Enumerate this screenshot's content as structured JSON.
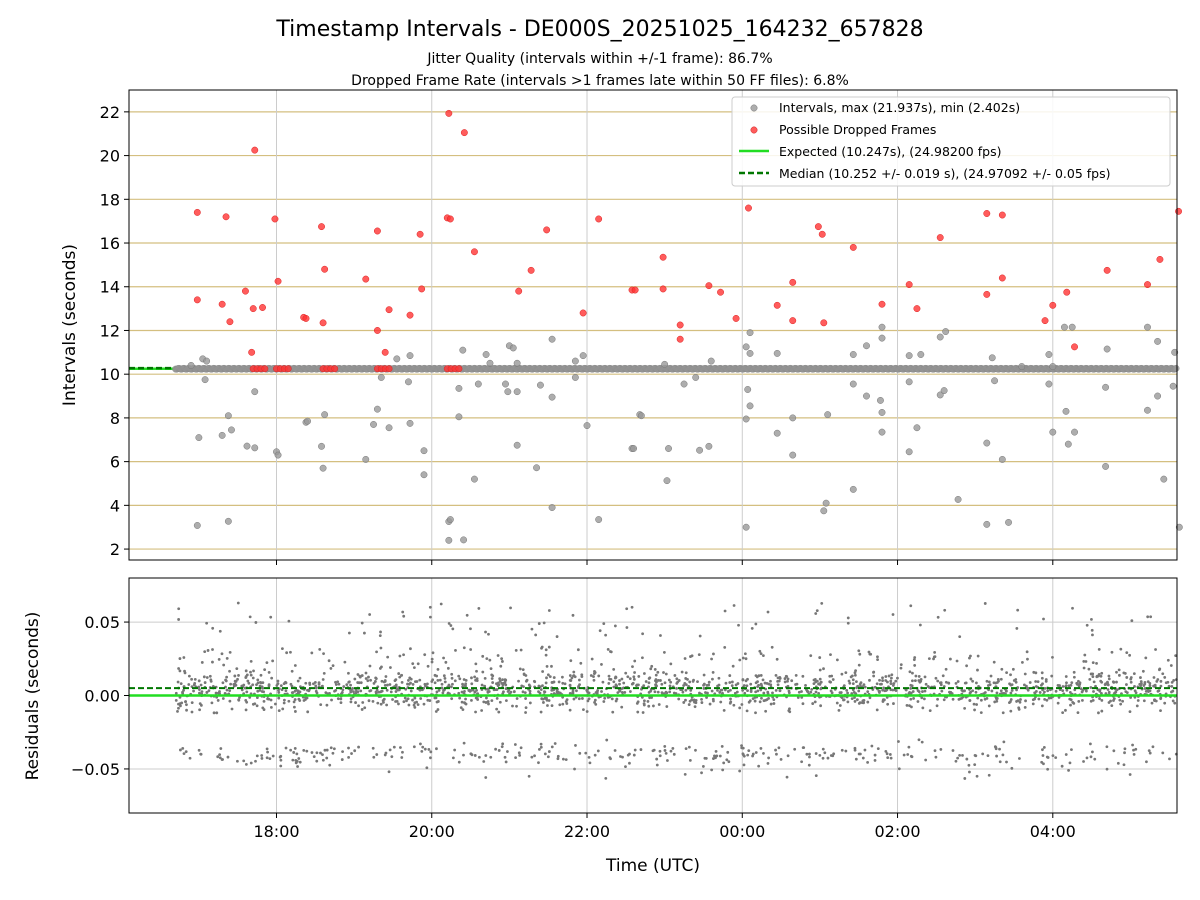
{
  "chart_data": [
    {
      "id": "top",
      "type": "scatter",
      "title": "Timestamp Intervals - DE000S_20251025_164232_657828",
      "subtitle_lines": [
        "Jitter Quality (intervals within +/-1 frame): 86.7%",
        "Dropped Frame Rate (intervals >1 frames late within 50 FF files): 6.8%"
      ],
      "ylabel": "Intervals (seconds)",
      "ylim": [
        1.5,
        23.0
      ],
      "xlim_hours": [
        16.1,
        29.6
      ],
      "yticks": [
        2,
        4,
        6,
        8,
        10,
        12,
        14,
        16,
        18,
        20,
        22
      ],
      "colors": {
        "intervals": "#999999",
        "dropped": "#ff3333",
        "expected": "#22dd22",
        "median": "#007700",
        "hgrid": "#d4bf80",
        "vgrid": "#cccccc"
      },
      "legend": [
        "Intervals, max (21.937s), min (2.402s)",
        "Possible Dropped Frames",
        "Expected (10.247s), (24.98200 fps)",
        "Median (10.252 +/- 0.019 s), (24.97092 +/- 0.05 fps)"
      ],
      "expected_value": 10.247,
      "median_value": 10.252,
      "series": [
        {
          "name": "Intervals",
          "points": [
            [
              16.98,
              3.08
            ],
            [
              17.38,
              3.27
            ],
            [
              20.22,
              3.26
            ],
            [
              20.24,
              3.35
            ],
            [
              20.22,
              2.4
            ],
            [
              20.41,
              2.42
            ],
            [
              22.15,
              3.35
            ],
            [
              23.03,
              5.13
            ],
            [
              22.58,
              6.6
            ],
            [
              22.6,
              6.6
            ],
            [
              23.05,
              6.6
            ],
            [
              24.05,
              3.0
            ],
            [
              25.05,
              3.75
            ],
            [
              25.08,
              4.1
            ],
            [
              25.43,
              4.73
            ],
            [
              26.78,
              4.27
            ],
            [
              27.15,
              3.13
            ],
            [
              27.43,
              3.22
            ],
            [
              29.63,
              3.0
            ],
            [
              29.43,
              5.2
            ],
            [
              28.68,
              5.78
            ],
            [
              20.55,
              5.2
            ],
            [
              21.35,
              5.72
            ],
            [
              21.55,
              3.9
            ],
            [
              18.6,
              5.7
            ],
            [
              19.15,
              6.1
            ],
            [
              18.0,
              6.45
            ],
            [
              18.02,
              6.3
            ],
            [
              17.72,
              6.63
            ],
            [
              17.62,
              6.71
            ],
            [
              17.0,
              7.1
            ],
            [
              17.3,
              7.2
            ],
            [
              18.38,
              7.8
            ],
            [
              18.4,
              7.85
            ],
            [
              18.58,
              6.7
            ],
            [
              19.25,
              7.7
            ],
            [
              19.45,
              7.55
            ],
            [
              19.72,
              7.75
            ],
            [
              19.9,
              6.5
            ],
            [
              19.9,
              5.4
            ],
            [
              21.1,
              6.75
            ],
            [
              23.45,
              6.52
            ],
            [
              23.57,
              6.7
            ],
            [
              24.05,
              7.95
            ],
            [
              24.1,
              8.55
            ],
            [
              24.07,
              9.3
            ],
            [
              24.45,
              7.3
            ],
            [
              24.65,
              6.3
            ],
            [
              24.65,
              8.0
            ],
            [
              25.1,
              8.15
            ],
            [
              25.43,
              9.55
            ],
            [
              25.6,
              9.0
            ],
            [
              25.78,
              8.8
            ],
            [
              25.8,
              8.25
            ],
            [
              25.8,
              7.35
            ],
            [
              26.15,
              6.45
            ],
            [
              26.25,
              7.55
            ],
            [
              26.55,
              9.05
            ],
            [
              26.6,
              9.25
            ],
            [
              27.15,
              6.85
            ],
            [
              27.25,
              9.7
            ],
            [
              27.35,
              6.1
            ],
            [
              27.95,
              9.55
            ],
            [
              28.0,
              7.35
            ],
            [
              28.17,
              8.3
            ],
            [
              28.2,
              6.8
            ],
            [
              28.28,
              7.35
            ],
            [
              28.68,
              9.4
            ],
            [
              29.22,
              8.35
            ],
            [
              29.35,
              9.0
            ],
            [
              29.55,
              9.45
            ],
            [
              17.38,
              8.1
            ],
            [
              17.42,
              7.45
            ],
            [
              17.72,
              9.2
            ],
            [
              18.62,
              8.15
            ],
            [
              19.3,
              8.4
            ],
            [
              19.35,
              9.85
            ],
            [
              19.7,
              9.65
            ],
            [
              20.35,
              8.05
            ],
            [
              20.35,
              9.35
            ],
            [
              20.6,
              9.55
            ],
            [
              20.95,
              9.55
            ],
            [
              20.98,
              9.2
            ],
            [
              21.1,
              9.2
            ],
            [
              21.4,
              9.5
            ],
            [
              21.55,
              8.95
            ],
            [
              21.85,
              9.85
            ],
            [
              22.0,
              7.65
            ],
            [
              22.68,
              8.15
            ],
            [
              22.7,
              8.1
            ],
            [
              23.25,
              9.55
            ],
            [
              23.4,
              9.85
            ],
            [
              23.6,
              10.6
            ],
            [
              24.1,
              10.95
            ],
            [
              24.05,
              11.25
            ],
            [
              24.1,
              11.9
            ],
            [
              24.45,
              10.95
            ],
            [
              25.43,
              10.9
            ],
            [
              25.6,
              11.3
            ],
            [
              25.8,
              11.65
            ],
            [
              25.8,
              12.15
            ],
            [
              26.15,
              10.85
            ],
            [
              26.15,
              9.65
            ],
            [
              26.3,
              10.9
            ],
            [
              26.55,
              11.7
            ],
            [
              26.62,
              11.95
            ],
            [
              27.22,
              10.75
            ],
            [
              27.95,
              10.9
            ],
            [
              28.15,
              12.15
            ],
            [
              28.25,
              12.15
            ],
            [
              28.7,
              11.15
            ],
            [
              29.22,
              12.15
            ],
            [
              29.35,
              11.5
            ],
            [
              29.57,
              11.0
            ],
            [
              21.0,
              11.3
            ],
            [
              21.05,
              11.2
            ],
            [
              21.1,
              10.5
            ],
            [
              21.55,
              11.6
            ],
            [
              21.85,
              10.6
            ],
            [
              21.95,
              10.85
            ],
            [
              20.4,
              11.1
            ],
            [
              20.7,
              10.9
            ],
            [
              19.72,
              10.85
            ],
            [
              19.55,
              10.7
            ],
            [
              17.05,
              10.7
            ],
            [
              17.08,
              9.75
            ],
            [
              17.1,
              10.6
            ],
            [
              16.9,
              10.4
            ],
            [
              23.0,
              10.45
            ],
            [
              20.75,
              10.5
            ],
            [
              27.6,
              10.35
            ],
            [
              28.0,
              10.35
            ]
          ]
        },
        {
          "name": "Possible Dropped Frames",
          "points": [
            [
              16.98,
              17.4
            ],
            [
              16.98,
              13.4
            ],
            [
              17.3,
              13.2
            ],
            [
              17.35,
              17.2
            ],
            [
              17.4,
              12.4
            ],
            [
              17.6,
              13.8
            ],
            [
              17.68,
              11.0
            ],
            [
              17.7,
              13.0
            ],
            [
              17.72,
              20.25
            ],
            [
              17.82,
              13.05
            ],
            [
              17.98,
              17.1
            ],
            [
              18.02,
              14.25
            ],
            [
              18.35,
              12.6
            ],
            [
              18.38,
              12.55
            ],
            [
              18.58,
              16.75
            ],
            [
              18.62,
              14.8
            ],
            [
              18.6,
              12.35
            ],
            [
              19.15,
              14.35
            ],
            [
              19.3,
              16.55
            ],
            [
              19.3,
              12.0
            ],
            [
              19.4,
              11.0
            ],
            [
              19.45,
              12.95
            ],
            [
              19.72,
              12.7
            ],
            [
              19.85,
              16.4
            ],
            [
              19.87,
              13.9
            ],
            [
              20.22,
              21.93
            ],
            [
              20.2,
              17.15
            ],
            [
              20.24,
              17.1
            ],
            [
              20.42,
              21.05
            ],
            [
              20.55,
              15.6
            ],
            [
              21.12,
              13.8
            ],
            [
              21.28,
              14.75
            ],
            [
              21.48,
              16.6
            ],
            [
              21.95,
              12.8
            ],
            [
              22.15,
              17.1
            ],
            [
              22.58,
              13.85
            ],
            [
              22.62,
              13.85
            ],
            [
              22.98,
              15.35
            ],
            [
              22.98,
              13.9
            ],
            [
              23.2,
              12.25
            ],
            [
              23.2,
              11.6
            ],
            [
              23.57,
              14.05
            ],
            [
              23.72,
              13.75
            ],
            [
              23.92,
              12.55
            ],
            [
              24.08,
              17.6
            ],
            [
              24.45,
              13.15
            ],
            [
              24.65,
              14.2
            ],
            [
              24.65,
              12.45
            ],
            [
              24.98,
              16.75
            ],
            [
              25.03,
              16.4
            ],
            [
              25.05,
              12.35
            ],
            [
              25.43,
              15.8
            ],
            [
              25.8,
              13.2
            ],
            [
              26.15,
              14.1
            ],
            [
              26.25,
              13.0
            ],
            [
              26.55,
              16.25
            ],
            [
              27.15,
              17.35
            ],
            [
              27.15,
              13.65
            ],
            [
              27.35,
              17.28
            ],
            [
              27.35,
              14.4
            ],
            [
              27.9,
              12.45
            ],
            [
              28.0,
              13.15
            ],
            [
              28.18,
              13.75
            ],
            [
              28.28,
              11.25
            ],
            [
              28.7,
              14.75
            ],
            [
              29.22,
              14.1
            ],
            [
              29.38,
              15.25
            ],
            [
              29.62,
              17.45
            ]
          ]
        },
        {
          "name": "Possible Dropped Frames (cluster near 10.247s)",
          "points": [
            [
              17.7,
              10.25
            ],
            [
              17.75,
              10.25
            ],
            [
              17.8,
              10.25
            ],
            [
              17.85,
              10.25
            ],
            [
              18.0,
              10.25
            ],
            [
              18.05,
              10.25
            ],
            [
              18.1,
              10.25
            ],
            [
              18.15,
              10.25
            ],
            [
              18.6,
              10.25
            ],
            [
              18.65,
              10.25
            ],
            [
              18.7,
              10.25
            ],
            [
              18.75,
              10.25
            ],
            [
              19.3,
              10.25
            ],
            [
              19.35,
              10.25
            ],
            [
              19.4,
              10.25
            ],
            [
              19.45,
              10.25
            ],
            [
              20.2,
              10.25
            ],
            [
              20.25,
              10.25
            ],
            [
              20.3,
              10.25
            ],
            [
              20.35,
              10.25
            ]
          ]
        }
      ]
    },
    {
      "id": "bottom",
      "type": "scatter",
      "ylabel": "Residuals (seconds)",
      "xlabel": "Time (UTC)",
      "ylim": [
        -0.08,
        0.08
      ],
      "xlim_hours": [
        16.1,
        29.6
      ],
      "yticks": [
        0.05,
        0.0,
        -0.05
      ],
      "ytick_labels": [
        "0.05",
        "0.00",
        "−0.05"
      ],
      "xticks_hours": [
        18,
        20,
        22,
        24,
        26,
        28
      ],
      "xtick_labels": [
        "18:00",
        "20:00",
        "22:00",
        "00:00",
        "02:00",
        "04:00"
      ],
      "expected_value": 0.0,
      "median_value": 0.005,
      "residual_summary": {
        "time_span_hours": [
          16.7,
          29.6
        ],
        "point_count": 2200,
        "core_band": [
          -0.01,
          0.015
        ],
        "lower_band_center": -0.04,
        "upper_outliers_max": 0.063,
        "lower_outliers_min": -0.057
      }
    }
  ]
}
